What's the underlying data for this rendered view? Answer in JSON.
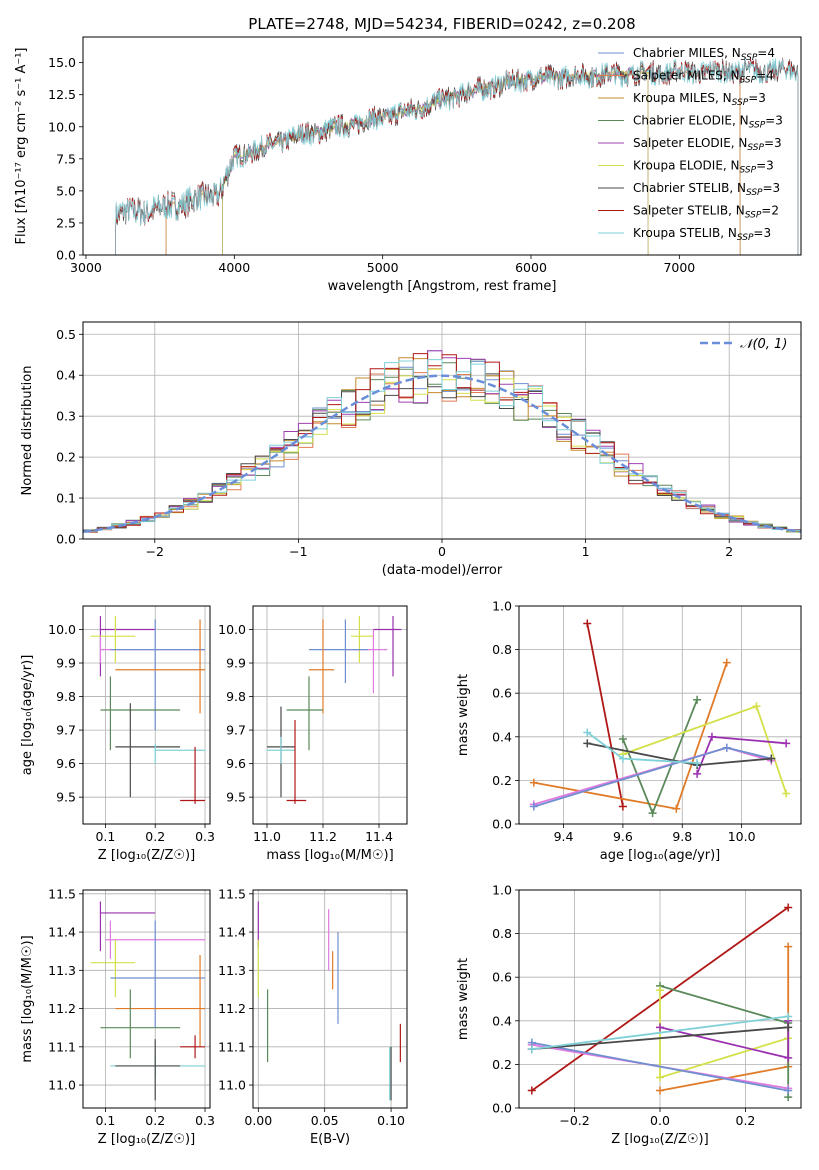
{
  "figure": {
    "title": "PLATE=2748, MJD=54234, FIBERID=0242, z=0.208"
  },
  "chart_data": [
    {
      "id": "spectrum",
      "type": "line",
      "title": "PLATE=2748, MJD=54234, FIBERID=0242, z=0.208",
      "xlabel": "wavelength [Angstrom, rest frame]",
      "ylabel": "Flux [fλ10⁻¹⁷ erg cm⁻² s⁻¹ A⁻¹]",
      "xlim": [
        2980,
        7820
      ],
      "ylim": [
        0,
        17
      ],
      "x_ticks": [
        3000,
        4000,
        5000,
        6000,
        7000
      ],
      "y_ticks": [
        0.0,
        2.5,
        5.0,
        7.5,
        10.0,
        12.5,
        15.0
      ],
      "grid": false,
      "legend_position": "top-right",
      "continuum_anchors": [
        [
          3200,
          3.2
        ],
        [
          3500,
          3.6
        ],
        [
          3700,
          4.2
        ],
        [
          3900,
          4.8
        ],
        [
          4000,
          7.6
        ],
        [
          4400,
          9.2
        ],
        [
          4800,
          10.2
        ],
        [
          5200,
          11.3
        ],
        [
          5600,
          12.8
        ],
        [
          6000,
          13.8
        ],
        [
          6400,
          14.0
        ],
        [
          6800,
          14.2
        ],
        [
          7200,
          14.3
        ],
        [
          7800,
          14.4
        ]
      ],
      "series": [
        {
          "name": "Chabrier MILES, NSSP=4",
          "label_main": "Chabrier MILES, N",
          "label_sub": "SSP",
          "label_tail": "=4",
          "color": "#6f8fcf",
          "x_range": [
            3540,
            7410
          ]
        },
        {
          "name": "Salpeter MILES, NSSP=4",
          "label_main": "Salpeter MILES, N",
          "label_sub": "SSP",
          "label_tail": "=4",
          "color": "#e07b54",
          "x_range": [
            3540,
            7410
          ]
        },
        {
          "name": "Kroupa MILES, NSSP=3",
          "label_main": "Kroupa MILES, N",
          "label_sub": "SSP",
          "label_tail": "=3",
          "color": "#c48a2a",
          "x_range": [
            3540,
            7410
          ]
        },
        {
          "name": "Chabrier ELODIE, NSSP=3",
          "label_main": "Chabrier ELODIE, N",
          "label_sub": "SSP",
          "label_tail": "=3",
          "color": "#5a8a5a",
          "x_range": [
            3920,
            6790
          ]
        },
        {
          "name": "Salpeter ELODIE, NSSP=3",
          "label_main": "Salpeter ELODIE, N",
          "label_sub": "SSP",
          "label_tail": "=3",
          "color": "#a040b0",
          "x_range": [
            3920,
            6790
          ]
        },
        {
          "name": "Kroupa ELODIE, NSSP=3",
          "label_main": "Kroupa ELODIE, N",
          "label_sub": "SSP",
          "label_tail": "=3",
          "color": "#d4e04a",
          "x_range": [
            3920,
            6790
          ]
        },
        {
          "name": "Chabrier STELIB, NSSP=3",
          "label_main": "Chabrier STELIB, N",
          "label_sub": "SSP",
          "label_tail": "=3",
          "color": "#4a4a4a",
          "x_range": [
            3200,
            7800
          ]
        },
        {
          "name": "Salpeter STELIB, NSSP=2",
          "label_main": "Salpeter STELIB, N",
          "label_sub": "SSP",
          "label_tail": "=2",
          "color": "#b01818",
          "x_range": [
            3200,
            7800
          ]
        },
        {
          "name": "Kroupa STELIB, NSSP=3",
          "label_main": "Kroupa STELIB, N",
          "label_sub": "SSP",
          "label_tail": "=3",
          "color": "#7fd0d8",
          "x_range": [
            3200,
            7800
          ]
        }
      ]
    },
    {
      "id": "residuals",
      "type": "line",
      "xlabel": "(data-model)/error",
      "ylabel": "Normed distribution",
      "xlim": [
        -2.5,
        2.5
      ],
      "ylim": [
        0,
        0.53
      ],
      "x_ticks": [
        -2,
        -1,
        0,
        1,
        2
      ],
      "y_ticks": [
        0.0,
        0.1,
        0.2,
        0.3,
        0.4,
        0.5
      ],
      "grid": true,
      "legend_position": "top-right",
      "gaussian_label": "𝒩(0, 1)",
      "gaussian_color": "#6a8fd8",
      "bin_width": 0.1
    },
    {
      "id": "z_age",
      "type": "scatter",
      "xlabel": "Z [log₁₀(Z/Z☉)]",
      "ylabel": "age [log₁₀(age/yr)]",
      "xlim": [
        0.055,
        0.31
      ],
      "ylim": [
        9.42,
        10.07
      ],
      "x_ticks": [
        0.1,
        0.2,
        0.3
      ],
      "y_ticks": [
        9.5,
        9.6,
        9.7,
        9.8,
        9.9,
        10.0
      ],
      "grid": true,
      "points": [
        {
          "color": "#9a30b0",
          "x": 0.09,
          "y": 10.0,
          "xerr": [
            0.09,
            0.2
          ],
          "yerr": [
            9.86,
            10.04
          ]
        },
        {
          "color": "#d4e04a",
          "x": 0.12,
          "y": 9.98,
          "xerr": [
            0.07,
            0.16
          ],
          "yerr": [
            9.9,
            10.04
          ]
        },
        {
          "color": "#e07be0",
          "x": 0.09,
          "y": 9.94,
          "xerr": [
            0.09,
            0.3
          ],
          "yerr": [
            9.9,
            9.98
          ]
        },
        {
          "color": "#6f8fcf",
          "x": 0.2,
          "y": 9.94,
          "xerr": [
            0.11,
            0.3
          ],
          "yerr": [
            9.7,
            10.03
          ]
        },
        {
          "color": "#e07b28",
          "x": 0.29,
          "y": 9.88,
          "xerr": [
            0.12,
            0.3
          ],
          "yerr": [
            9.75,
            10.03
          ]
        },
        {
          "color": "#5a8a5a",
          "x": 0.11,
          "y": 9.76,
          "xerr": [
            0.09,
            0.25
          ],
          "yerr": [
            9.64,
            9.86
          ]
        },
        {
          "color": "#4a4a4a",
          "x": 0.15,
          "y": 9.65,
          "xerr": [
            0.12,
            0.25
          ],
          "yerr": [
            9.5,
            9.78
          ]
        },
        {
          "color": "#7fd0d8",
          "x": 0.2,
          "y": 9.64,
          "xerr": [
            0.2,
            0.3
          ],
          "yerr": [
            9.6,
            9.66
          ]
        },
        {
          "color": "#b01818",
          "x": 0.28,
          "y": 9.49,
          "xerr": [
            0.25,
            0.3
          ],
          "yerr": [
            9.48,
            9.65
          ]
        }
      ]
    },
    {
      "id": "mass_age",
      "type": "scatter",
      "xlabel": "mass [log₁₀(M/M☉)]",
      "ylabel": "",
      "xlim": [
        10.95,
        11.5
      ],
      "ylim": [
        9.42,
        10.07
      ],
      "x_ticks": [
        11.0,
        11.2,
        11.4
      ],
      "y_ticks": [
        9.5,
        9.6,
        9.7,
        9.8,
        9.9,
        10.0
      ],
      "grid": true,
      "points": [
        {
          "color": "#9a30b0",
          "x": 11.45,
          "y": 10.0,
          "xerr": [
            11.38,
            11.48
          ],
          "yerr": [
            9.86,
            10.04
          ]
        },
        {
          "color": "#d4e04a",
          "x": 11.33,
          "y": 9.98,
          "xerr": [
            11.3,
            11.38
          ],
          "yerr": [
            9.9,
            10.04
          ]
        },
        {
          "color": "#e07be0",
          "x": 11.38,
          "y": 9.94,
          "xerr": [
            11.28,
            11.43
          ],
          "yerr": [
            9.81,
            10.0
          ]
        },
        {
          "color": "#6f8fcf",
          "x": 11.28,
          "y": 9.94,
          "xerr": [
            11.15,
            11.36
          ],
          "yerr": [
            9.84,
            10.03
          ]
        },
        {
          "color": "#e07b28",
          "x": 11.2,
          "y": 9.88,
          "xerr": [
            11.15,
            11.24
          ],
          "yerr": [
            9.75,
            10.03
          ]
        },
        {
          "color": "#5a8a5a",
          "x": 11.15,
          "y": 9.76,
          "xerr": [
            11.07,
            11.2
          ],
          "yerr": [
            9.64,
            9.86
          ]
        },
        {
          "color": "#4a4a4a",
          "x": 11.05,
          "y": 9.65,
          "xerr": [
            11.0,
            11.1
          ],
          "yerr": [
            9.5,
            9.77
          ]
        },
        {
          "color": "#7fd0d8",
          "x": 11.05,
          "y": 9.64,
          "xerr": [
            11.0,
            11.1
          ],
          "yerr": [
            9.6,
            9.68
          ]
        },
        {
          "color": "#b01818",
          "x": 11.1,
          "y": 9.49,
          "xerr": [
            11.07,
            11.14
          ],
          "yerr": [
            9.48,
            9.73
          ]
        }
      ]
    },
    {
      "id": "age_weight",
      "type": "line",
      "xlabel": "age [log₁₀(age/yr)]",
      "ylabel": "mass weight",
      "xlim": [
        9.25,
        10.2
      ],
      "ylim": [
        0,
        1
      ],
      "x_ticks": [
        9.4,
        9.6,
        9.8,
        10.0
      ],
      "y_ticks": [
        0.0,
        0.2,
        0.4,
        0.6,
        0.8,
        1.0
      ],
      "grid": true,
      "series": [
        {
          "color": "#b01818",
          "x": [
            9.48,
            9.6
          ],
          "y": [
            0.92,
            0.08
          ]
        },
        {
          "color": "#e07b28",
          "x": [
            9.3,
            9.78,
            9.95
          ],
          "y": [
            0.19,
            0.07,
            0.74
          ]
        },
        {
          "color": "#5a8a5a",
          "x": [
            9.6,
            9.7,
            9.85
          ],
          "y": [
            0.39,
            0.05,
            0.57
          ]
        },
        {
          "color": "#d4e04a",
          "x": [
            9.6,
            10.05,
            10.15
          ],
          "y": [
            0.32,
            0.54,
            0.14
          ]
        },
        {
          "color": "#9a30b0",
          "x": [
            9.85,
            9.9,
            10.15
          ],
          "y": [
            0.23,
            0.4,
            0.37
          ]
        },
        {
          "color": "#e07be0",
          "x": [
            9.3,
            9.95,
            10.1
          ],
          "y": [
            0.09,
            0.35,
            0.29
          ]
        },
        {
          "color": "#6f8fcf",
          "x": [
            9.3,
            9.95,
            10.1
          ],
          "y": [
            0.08,
            0.35,
            0.3
          ]
        },
        {
          "color": "#4a4a4a",
          "x": [
            9.48,
            9.85,
            10.1
          ],
          "y": [
            0.37,
            0.27,
            0.3
          ]
        },
        {
          "color": "#7fd0d8",
          "x": [
            9.48,
            9.6,
            9.85
          ],
          "y": [
            0.42,
            0.3,
            0.28
          ]
        }
      ]
    },
    {
      "id": "z_mass",
      "type": "scatter",
      "xlabel": "Z [log₁₀(Z/Z☉)]",
      "ylabel": "mass [log₁₀(M/M☉)]",
      "xlim": [
        0.055,
        0.31
      ],
      "ylim": [
        10.94,
        11.51
      ],
      "x_ticks": [
        0.1,
        0.2,
        0.3
      ],
      "y_ticks": [
        11.0,
        11.1,
        11.2,
        11.3,
        11.4,
        11.5
      ],
      "grid": true,
      "points": [
        {
          "color": "#9a30b0",
          "x": 0.09,
          "y": 11.45,
          "xerr": [
            0.09,
            0.2
          ],
          "yerr": [
            11.35,
            11.48
          ]
        },
        {
          "color": "#e07be0",
          "x": 0.11,
          "y": 11.38,
          "xerr": [
            0.1,
            0.3
          ],
          "yerr": [
            11.33,
            11.43
          ]
        },
        {
          "color": "#d4e04a",
          "x": 0.12,
          "y": 11.32,
          "xerr": [
            0.07,
            0.16
          ],
          "yerr": [
            11.23,
            11.38
          ]
        },
        {
          "color": "#6f8fcf",
          "x": 0.2,
          "y": 11.28,
          "xerr": [
            0.11,
            0.3
          ],
          "yerr": [
            11.15,
            11.43
          ]
        },
        {
          "color": "#e07b28",
          "x": 0.29,
          "y": 11.2,
          "xerr": [
            0.12,
            0.3
          ],
          "yerr": [
            11.1,
            11.34
          ]
        },
        {
          "color": "#5a8a5a",
          "x": 0.15,
          "y": 11.15,
          "xerr": [
            0.09,
            0.25
          ],
          "yerr": [
            11.07,
            11.25
          ]
        },
        {
          "color": "#b01818",
          "x": 0.28,
          "y": 11.1,
          "xerr": [
            0.25,
            0.3
          ],
          "yerr": [
            11.07,
            11.13
          ]
        },
        {
          "color": "#7fd0d8",
          "x": 0.2,
          "y": 11.05,
          "xerr": [
            0.11,
            0.3
          ],
          "yerr": [
            11.02,
            11.08
          ]
        },
        {
          "color": "#4a4a4a",
          "x": 0.2,
          "y": 11.05,
          "xerr": [
            0.12,
            0.25
          ],
          "yerr": [
            10.96,
            11.12
          ]
        }
      ]
    },
    {
      "id": "ebv_mass",
      "type": "scatter",
      "xlabel": "E(B-V)",
      "ylabel": "",
      "xlim": [
        -0.004,
        0.112
      ],
      "ylim": [
        10.94,
        11.51
      ],
      "x_ticks": [
        0.0,
        0.05,
        0.1
      ],
      "y_ticks": [
        11.0,
        11.1,
        11.2,
        11.3,
        11.4,
        11.5
      ],
      "grid": true,
      "points": [
        {
          "color": "#9a30b0",
          "x": 0.0,
          "y": 11.43,
          "xerr": [
            0.0,
            0.0
          ],
          "yerr": [
            11.36,
            11.48
          ]
        },
        {
          "color": "#d4e04a",
          "x": 0.0,
          "y": 11.3,
          "xerr": [
            0.0,
            0.0
          ],
          "yerr": [
            11.23,
            11.38
          ]
        },
        {
          "color": "#5a8a5a",
          "x": 0.007,
          "y": 11.15,
          "xerr": [
            0.007,
            0.007
          ],
          "yerr": [
            11.06,
            11.25
          ]
        },
        {
          "color": "#e07be0",
          "x": 0.053,
          "y": 11.38,
          "xerr": [
            0.053,
            0.053
          ],
          "yerr": [
            11.3,
            11.46
          ]
        },
        {
          "color": "#e07b28",
          "x": 0.056,
          "y": 11.3,
          "xerr": [
            0.056,
            0.056
          ],
          "yerr": [
            11.25,
            11.35
          ]
        },
        {
          "color": "#6f8fcf",
          "x": 0.06,
          "y": 11.28,
          "xerr": [
            0.06,
            0.06
          ],
          "yerr": [
            11.16,
            11.4
          ]
        },
        {
          "color": "#7fd0d8",
          "x": 0.099,
          "y": 11.05,
          "xerr": [
            0.099,
            0.099
          ],
          "yerr": [
            10.96,
            11.1
          ]
        },
        {
          "color": "#4a4a4a",
          "x": 0.1,
          "y": 11.02,
          "xerr": [
            0.1,
            0.1
          ],
          "yerr": [
            10.96,
            11.1
          ]
        },
        {
          "color": "#b01818",
          "x": 0.107,
          "y": 11.1,
          "xerr": [
            0.107,
            0.107
          ],
          "yerr": [
            11.06,
            11.16
          ]
        }
      ]
    },
    {
      "id": "z_weight",
      "type": "line",
      "xlabel": "Z [log₁₀(Z/Z☉)]",
      "ylabel": "mass weight",
      "xlim": [
        -0.33,
        0.33
      ],
      "ylim": [
        0,
        1
      ],
      "x_ticks": [
        -0.2,
        0.0,
        0.2
      ],
      "y_ticks": [
        0.0,
        0.2,
        0.4,
        0.6,
        0.8,
        1.0
      ],
      "grid": true,
      "series": [
        {
          "color": "#b01818",
          "x": [
            -0.3,
            0.3
          ],
          "y": [
            0.08,
            0.92
          ]
        },
        {
          "color": "#e07b28",
          "x": [
            0.0,
            0.3,
            0.3
          ],
          "y": [
            0.08,
            0.19,
            0.74
          ]
        },
        {
          "color": "#5a8a5a",
          "x": [
            0.0,
            0.3,
            0.3
          ],
          "y": [
            0.56,
            0.39,
            0.05
          ]
        },
        {
          "color": "#d4e04a",
          "x": [
            0.0,
            0.0,
            0.3
          ],
          "y": [
            0.54,
            0.14,
            0.32
          ]
        },
        {
          "color": "#9a30b0",
          "x": [
            0.0,
            0.3,
            0.3
          ],
          "y": [
            0.37,
            0.23,
            0.4
          ]
        },
        {
          "color": "#e07be0",
          "x": [
            -0.3,
            0.3
          ],
          "y": [
            0.29,
            0.09
          ]
        },
        {
          "color": "#6f8fcf",
          "x": [
            -0.3,
            0.3
          ],
          "y": [
            0.3,
            0.08
          ]
        },
        {
          "color": "#4a4a4a",
          "x": [
            -0.3,
            0.3
          ],
          "y": [
            0.27,
            0.37
          ]
        },
        {
          "color": "#7fd0d8",
          "x": [
            -0.3,
            0.3
          ],
          "y": [
            0.27,
            0.42
          ]
        }
      ]
    }
  ]
}
